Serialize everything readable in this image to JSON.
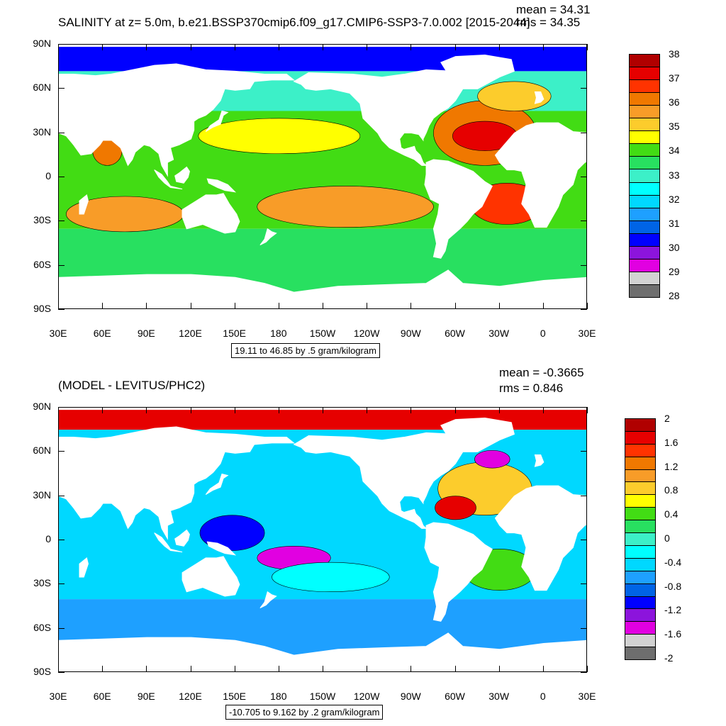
{
  "chart_data": [
    {
      "type": "heatmap",
      "title": "SALINITY at z=   5.0m, b.e21.BSSP370cmip6.f09_g17.CMIP6-SSP3-7.0.002 [2015-2044]",
      "stats": {
        "mean": "mean = 34.31",
        "rms": "rms = 34.35"
      },
      "x_ticks": [
        "30E",
        "60E",
        "90E",
        "120E",
        "150E",
        "180",
        "150W",
        "120W",
        "90W",
        "60W",
        "30W",
        "0",
        "30E"
      ],
      "y_ticks": [
        "90N",
        "60N",
        "30N",
        "0",
        "30S",
        "60S",
        "90S"
      ],
      "xlim": [
        30,
        390
      ],
      "ylim": [
        -90,
        90
      ],
      "contour_range_label": "19.11 to 46.85 by .5 gram/kilogram",
      "colorbar": {
        "labels": [
          "38",
          "37",
          "36",
          "35",
          "34",
          "33",
          "32",
          "31",
          "30",
          "29",
          "28"
        ],
        "colors": [
          "#b00000",
          "#e60000",
          "#ff3300",
          "#f07800",
          "#f89c28",
          "#fccc2c",
          "#ffff00",
          "#42dc14",
          "#28e060",
          "#3cf0c8",
          "#00ffff",
          "#00d8ff",
          "#1ea0ff",
          "#0064e6",
          "#0000ff",
          "#8c14dc",
          "#e100e1",
          "#d2d2d2",
          "#6e6e6e"
        ]
      },
      "regions": [
        {
          "name": "arctic",
          "value": 31
        },
        {
          "name": "north-pacific",
          "value": 33.5
        },
        {
          "name": "tropical-pacific",
          "value": 34.5
        },
        {
          "name": "south-pacific-gyre",
          "value": 36.2
        },
        {
          "name": "southern-ocean",
          "value": 33.8
        },
        {
          "name": "north-atlantic-gyre",
          "value": 37.3
        },
        {
          "name": "south-atlantic-gyre",
          "value": 37
        },
        {
          "name": "indian-ocean",
          "value": 35
        },
        {
          "name": "arabian-sea",
          "value": 36.5
        }
      ]
    },
    {
      "type": "heatmap",
      "title": "(MODEL - LEVITUS/PHC2)",
      "stats": {
        "mean": "mean = -0.3665",
        "rms": "rms = 0.846"
      },
      "x_ticks": [
        "30E",
        "60E",
        "90E",
        "120E",
        "150E",
        "180",
        "150W",
        "120W",
        "90W",
        "60W",
        "30W",
        "0",
        "30E"
      ],
      "y_ticks": [
        "90N",
        "60N",
        "30N",
        "0",
        "30S",
        "60S",
        "90S"
      ],
      "xlim": [
        30,
        390
      ],
      "ylim": [
        -90,
        90
      ],
      "contour_range_label": "-10.705 to 9.162 by .2 gram/kilogram",
      "colorbar": {
        "labels": [
          "2",
          "1.6",
          "1.2",
          "0.8",
          "0.4",
          "0",
          "-0.4",
          "-0.8",
          "-1.2",
          "-1.6",
          "-2"
        ],
        "colors": [
          "#b00000",
          "#e60000",
          "#ff3300",
          "#f07800",
          "#f89c28",
          "#fccc2c",
          "#ffff00",
          "#42dc14",
          "#28e060",
          "#3cf0c8",
          "#00ffff",
          "#00d8ff",
          "#1ea0ff",
          "#0064e6",
          "#0000ff",
          "#8c14dc",
          "#e100e1",
          "#d2d2d2",
          "#6e6e6e"
        ]
      },
      "regions": [
        {
          "name": "pacific-broad",
          "value": -0.6
        },
        {
          "name": "western-tropical-pacific",
          "value": -1.2
        },
        {
          "name": "central-south-pacific",
          "value": -1.5
        },
        {
          "name": "north-atlantic",
          "value": 0.6
        },
        {
          "name": "gulf-of-mexico",
          "value": 1.6
        },
        {
          "name": "southern-ocean",
          "value": -0.7
        },
        {
          "name": "arctic-siberian",
          "value": 1.8
        }
      ]
    }
  ]
}
